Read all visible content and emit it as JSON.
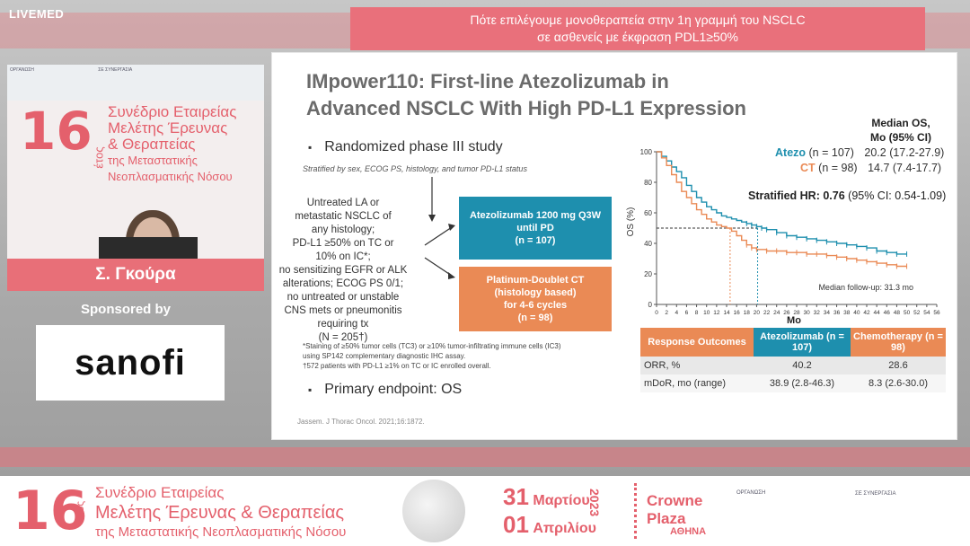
{
  "header": {
    "brand": "LIVEMED",
    "banner_line1": "Πότε επιλέγουμε μονοθεραπεία στην 1η γραμμή του NSCLC",
    "banner_line2": "σε ασθενείς με έκφραση PDL1≥50%"
  },
  "conference_panel": {
    "number": "16",
    "etos": "έτος",
    "title_line1": "Συνέδριο Εταιρείας",
    "title_line2": "Μελέτης Έρευνας",
    "title_line3": "& Θεραπείας",
    "title_line4": "της Μεταστατικής",
    "title_line5": "Νεοπλασματικής Νόσου",
    "org_label": "ΟΡΓΑΝΩΣΗ",
    "syn_label": "ΣΕ ΣΥΝΕΡΓΑΣΙΑ"
  },
  "speaker": {
    "name": "Σ. Γκούρα"
  },
  "sponsor": {
    "label": "Sponsored by",
    "logo_text": "sanofi"
  },
  "slide": {
    "title_line1": "IMpower110: First-line Atezolizumab in",
    "title_line2": "Advanced NSCLC With High PD-L1 Expression",
    "bullet1": "Randomized phase III study",
    "stratified": "Stratified by sex, ECOG PS, histology, and tumor PD-L1 status",
    "eligibility": [
      "Untreated LA or",
      "metastatic NSCLC of",
      "any histology;",
      "PD-L1 ≥50% on TC or",
      "10% on IC*;",
      "no sensitizing EGFR or ALK",
      "alterations; ECOG PS 0/1;",
      "no untreated or unstable",
      "CNS mets or pneumonitis",
      "requiring tx",
      "(N = 205†)"
    ],
    "arm_atezo_line1": "Atezolizumab 1200 mg Q3W",
    "arm_atezo_line2": "until PD",
    "arm_atezo_line3": "(n = 107)",
    "arm_ct_line1": "Platinum-Doublet CT",
    "arm_ct_line2": "(histology based)",
    "arm_ct_line3": "for 4-6 cycles",
    "arm_ct_line4": "(n = 98)",
    "note1": "*Staining of ≥50% tumor cells (TC3) or ≥10% tumor-infiltrating immune cells (IC3)",
    "note2": "using SP142 complementary diagnostic IHC assay.",
    "note3": "†572 patients with PD-L1 ≥1% on TC or IC enrolled overall.",
    "bullet2": "Primary endpoint: OS",
    "citation": "Jassem. J Thorac Oncol. 2021;16:1872.",
    "median_hdr_line1": "Median OS,",
    "median_hdr_line2": "Mo (95% CI)",
    "legend_atezo_name": "Atezo",
    "legend_atezo_n": "(n = 107)",
    "legend_atezo_val": "20.2 (17.2-27.9)",
    "legend_ct_name": "CT",
    "legend_ct_n": "(n = 98)",
    "legend_ct_val": "14.7 (7.4-17.7)",
    "hr_label": "Stratified HR: 0.76",
    "hr_ci": "(95% CI: 0.54-1.09)",
    "followup": "Median follow-up: 31.3 mo",
    "colors": {
      "atezo": "#1e8fae",
      "ct": "#ea8a55",
      "title": "#6b6b6b"
    }
  },
  "response_table": {
    "headers": [
      "Response Outcomes",
      "Atezolizumab (n = 107)",
      "Chemotherapy (n = 98)"
    ],
    "rows": [
      [
        "ORR, %",
        "40.2",
        "28.6"
      ],
      [
        "mDoR, mo (range)",
        "38.9 (2.8-46.3)",
        "8.3 (2.6-30.0)"
      ]
    ]
  },
  "chart_data": {
    "type": "line",
    "title": "",
    "xlabel": "Mo",
    "ylabel": "OS (%)",
    "xlim": [
      0,
      56
    ],
    "ylim": [
      0,
      100
    ],
    "xticks": [
      0,
      2,
      4,
      6,
      8,
      10,
      12,
      14,
      16,
      18,
      20,
      22,
      24,
      26,
      28,
      30,
      32,
      34,
      36,
      38,
      40,
      42,
      44,
      46,
      48,
      50,
      52,
      54,
      56
    ],
    "yticks": [
      0,
      20,
      40,
      60,
      80,
      100
    ],
    "median_line_y": 50,
    "series": [
      {
        "name": "Atezo",
        "color": "#1e8fae",
        "median": 20.2,
        "x": [
          0,
          1,
          2,
          3,
          4,
          5,
          6,
          7,
          8,
          9,
          10,
          11,
          12,
          13,
          14,
          15,
          16,
          17,
          18,
          19,
          20,
          21,
          22,
          24,
          26,
          28,
          30,
          32,
          34,
          36,
          38,
          40,
          42,
          44,
          46,
          48,
          50
        ],
        "y": [
          100,
          97,
          94,
          90,
          87,
          83,
          78,
          74,
          70,
          67,
          64,
          62,
          60,
          58,
          57,
          56,
          55,
          54,
          53,
          52,
          51,
          50,
          49,
          47,
          45,
          44,
          43,
          42,
          41,
          40,
          39,
          38,
          37,
          35,
          34,
          33,
          33
        ]
      },
      {
        "name": "CT",
        "color": "#ea8a55",
        "median": 14.7,
        "x": [
          0,
          1,
          2,
          3,
          4,
          5,
          6,
          7,
          8,
          9,
          10,
          11,
          12,
          13,
          14,
          15,
          16,
          17,
          18,
          19,
          20,
          22,
          24,
          26,
          28,
          30,
          32,
          34,
          36,
          38,
          40,
          42,
          44,
          46,
          48,
          50
        ],
        "y": [
          100,
          96,
          91,
          85,
          80,
          74,
          70,
          66,
          62,
          59,
          56,
          54,
          52,
          51,
          50,
          48,
          45,
          42,
          39,
          37,
          36,
          35,
          35,
          34,
          34,
          33,
          33,
          32,
          31,
          30,
          29,
          28,
          27,
          26,
          25,
          25
        ]
      }
    ]
  },
  "footer": {
    "number": "16",
    "etos": "έτος",
    "line1": "Συνέδριο Εταιρείας",
    "line2": "Μελέτης Έρευνας & Θεραπείας",
    "line3": "της Μεταστατικής Νεοπλασματικής Νόσου",
    "date1_day": "31",
    "date1_month": "Μαρτίου",
    "date2_day": "01",
    "date2_month": "Απριλίου",
    "year": "2023",
    "venue_line1": "Crowne",
    "venue_line2": "Plaza",
    "city": "ΑΘΗΝΑ",
    "org_label": "ΟΡΓΑΝΩΣΗ",
    "syn_label": "ΣΕ ΣΥΝΕΡΓΑΣΙΑ"
  }
}
